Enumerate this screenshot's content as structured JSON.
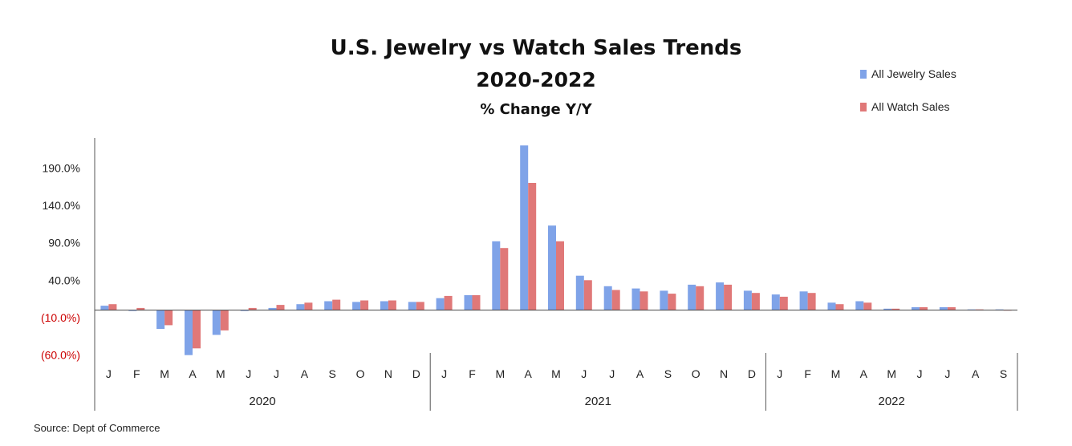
{
  "chart_data": {
    "type": "bar",
    "title": "U.S. Jewelry vs Watch Sales Trends",
    "subtitle": "2020-2022",
    "subtitle2": "% Change Y/Y",
    "source": "Source:  Dept of Commerce",
    "ylim": [
      -70,
      230
    ],
    "y_ticks": [
      190,
      140,
      90,
      40,
      -10,
      -60
    ],
    "y_tick_labels": [
      "190.0%",
      "140.0%",
      "90.0%",
      "40.0%",
      "(10.0%)",
      "(60.0%)"
    ],
    "negative_color": "#cc0000",
    "categories": [
      "J",
      "F",
      "M",
      "A",
      "M",
      "J",
      "J",
      "A",
      "S",
      "O",
      "N",
      "D",
      "J",
      "F",
      "M",
      "A",
      "M",
      "J",
      "J",
      "A",
      "S",
      "O",
      "N",
      "D",
      "J",
      "F",
      "M",
      "A",
      "M",
      "J",
      "J",
      "A",
      "S"
    ],
    "year_groups": [
      {
        "label": "2020",
        "count": 12
      },
      {
        "label": "2021",
        "count": 12
      },
      {
        "label": "2022",
        "count": 9
      }
    ],
    "legend_position": "top-right",
    "grid": false,
    "series": [
      {
        "name": "All Jewelry Sales",
        "color": "#7fa3e8",
        "values": [
          6,
          0,
          -25,
          -60,
          -33,
          0,
          3,
          8,
          12,
          11,
          12,
          11,
          16,
          20,
          92,
          220,
          113,
          46,
          32,
          29,
          26,
          34,
          37,
          26,
          21,
          25,
          10,
          12,
          2,
          4,
          4,
          1,
          1
        ]
      },
      {
        "name": "All Watch Sales",
        "color": "#e07878",
        "values": [
          8,
          3,
          -20,
          -51,
          -27,
          3,
          7,
          10,
          14,
          13,
          13,
          11,
          19,
          20,
          83,
          170,
          92,
          40,
          27,
          25,
          22,
          32,
          34,
          23,
          18,
          23,
          8,
          10,
          2,
          4,
          4,
          1,
          0.5
        ]
      }
    ]
  }
}
